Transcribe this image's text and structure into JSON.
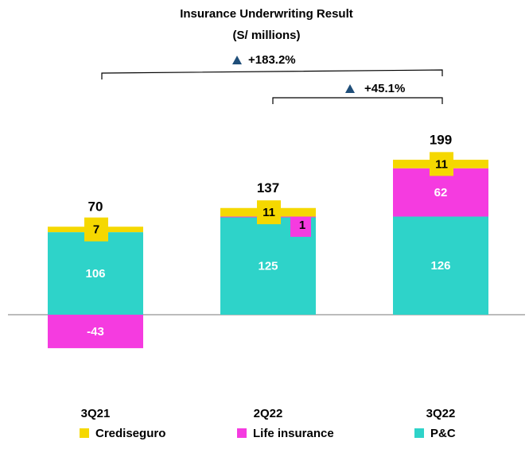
{
  "chart_data": {
    "type": "stacked_bar",
    "title": "Insurance Underwriting Result",
    "subtitle": "(S/ millions)",
    "categories": [
      "3Q21",
      "2Q22",
      "3Q22"
    ],
    "series": [
      {
        "name": "Crediseguro",
        "color": "#f5d800",
        "values": [
          7,
          11,
          11
        ]
      },
      {
        "name": "Life insurance",
        "color": "#f53be0",
        "values": [
          -43,
          1,
          62
        ]
      },
      {
        "name": "P&C",
        "color": "#2ed3c9",
        "values": [
          106,
          125,
          126
        ]
      }
    ],
    "totals": [
      70,
      137,
      199
    ],
    "annotations": [
      "+183.2%",
      "+45.1%"
    ]
  }
}
